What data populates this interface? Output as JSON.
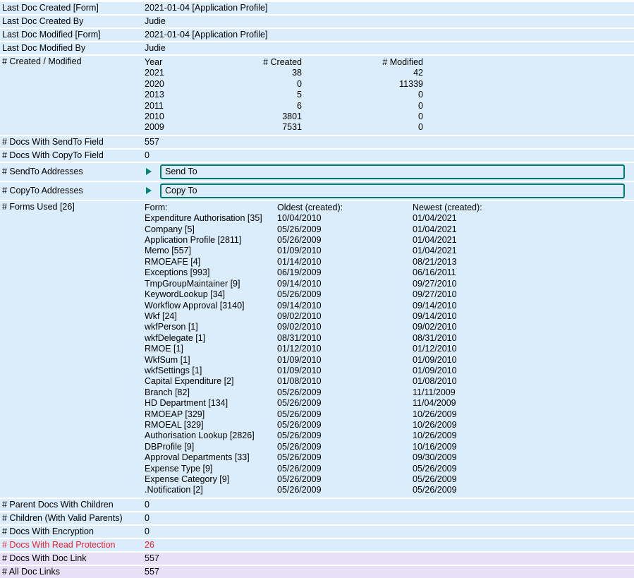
{
  "colors": {
    "row_background": "#dbedfb",
    "alt_row_background": "#e7e0f6",
    "warning_text": "#f11e32",
    "section_border_teal": "#007a70",
    "twistie_arrow_teal": "#00857a",
    "text": "#000000",
    "page_background": "#ffffff"
  },
  "top_rows": [
    {
      "label": "Last Doc Created [Form]",
      "value": "2021-01-04 [Application Profile]"
    },
    {
      "label": "Last Doc Created By",
      "value": "Judie"
    },
    {
      "label": "Last Doc Modified [Form]",
      "value": "2021-01-04 [Application Profile]"
    },
    {
      "label": "Last Doc Modified By",
      "value": "Judie"
    }
  ],
  "created_modified": {
    "label": "# Created / Modified",
    "columns": {
      "year": "Year",
      "created": "# Created",
      "modified": "# Modified"
    },
    "rows": [
      {
        "year": "2021",
        "created": "38",
        "modified": "42"
      },
      {
        "year": "2020",
        "created": "0",
        "modified": "11339"
      },
      {
        "year": "2013",
        "created": "5",
        "modified": "0"
      },
      {
        "year": "2011",
        "created": "6",
        "modified": "0"
      },
      {
        "year": "2010",
        "created": "3801",
        "modified": "0"
      },
      {
        "year": "2009",
        "created": "7531",
        "modified": "0"
      }
    ]
  },
  "sendto_field": {
    "label": "# Docs With SendTo Field",
    "value": "557"
  },
  "copyto_field": {
    "label": "# Docs With CopyTo Field",
    "value": "0"
  },
  "sendto_section": {
    "label": "# SendTo Addresses",
    "field_label": "Send To"
  },
  "copyto_section": {
    "label": "# CopyTo Addresses",
    "field_label": "Copy To"
  },
  "forms_used": {
    "label": "# Forms Used [26]",
    "columns": {
      "form": "Form:",
      "oldest": "Oldest (created):",
      "newest": "Newest (created):"
    },
    "rows": [
      {
        "form": "Expenditure Authorisation [35]",
        "oldest": "10/04/2010",
        "newest": "01/04/2021"
      },
      {
        "form": "Company [5]",
        "oldest": "05/26/2009",
        "newest": "01/04/2021"
      },
      {
        "form": "Application Profile [2811]",
        "oldest": "05/26/2009",
        "newest": "01/04/2021"
      },
      {
        "form": "Memo [557]",
        "oldest": "01/09/2010",
        "newest": "01/04/2021"
      },
      {
        "form": "RMOEAFE [4]",
        "oldest": "01/14/2010",
        "newest": "08/21/2013"
      },
      {
        "form": "Exceptions [993]",
        "oldest": "06/19/2009",
        "newest": "06/16/2011"
      },
      {
        "form": "TmpGroupMaintainer [9]",
        "oldest": "09/14/2010",
        "newest": "09/27/2010"
      },
      {
        "form": "KeywordLookup [34]",
        "oldest": "05/26/2009",
        "newest": "09/27/2010"
      },
      {
        "form": "Workflow Approval [3140]",
        "oldest": "09/14/2010",
        "newest": "09/14/2010"
      },
      {
        "form": "Wkf [24]",
        "oldest": "09/02/2010",
        "newest": "09/14/2010"
      },
      {
        "form": "wkfPerson [1]",
        "oldest": "09/02/2010",
        "newest": "09/02/2010"
      },
      {
        "form": "wkfDelegate [1]",
        "oldest": "08/31/2010",
        "newest": "08/31/2010"
      },
      {
        "form": "RMOE [1]",
        "oldest": "01/12/2010",
        "newest": "01/12/2010"
      },
      {
        "form": "WkfSum [1]",
        "oldest": "01/09/2010",
        "newest": "01/09/2010"
      },
      {
        "form": "wkfSettings [1]",
        "oldest": "01/09/2010",
        "newest": "01/09/2010"
      },
      {
        "form": "Capital Expenditure [2]",
        "oldest": "01/08/2010",
        "newest": "01/08/2010"
      },
      {
        "form": "Branch [82]",
        "oldest": "05/26/2009",
        "newest": "11/11/2009"
      },
      {
        "form": "HD Department [134]",
        "oldest": "05/26/2009",
        "newest": "11/04/2009"
      },
      {
        "form": "RMOEAP [329]",
        "oldest": "05/26/2009",
        "newest": "10/26/2009"
      },
      {
        "form": "RMOEAL [329]",
        "oldest": "05/26/2009",
        "newest": "10/26/2009"
      },
      {
        "form": "Authorisation Lookup [2826]",
        "oldest": "05/26/2009",
        "newest": "10/26/2009"
      },
      {
        "form": "DBProfile [9]",
        "oldest": "05/26/2009",
        "newest": "10/16/2009"
      },
      {
        "form": "Approval Departments [33]",
        "oldest": "05/26/2009",
        "newest": "09/30/2009"
      },
      {
        "form": "Expense Type [9]",
        "oldest": "05/26/2009",
        "newest": "05/26/2009"
      },
      {
        "form": "Expense Category [9]",
        "oldest": "05/26/2009",
        "newest": "05/26/2009"
      },
      {
        "form": ".Notification [2]",
        "oldest": "05/26/2009",
        "newest": "05/26/2009"
      }
    ]
  },
  "bottom_rows": [
    {
      "label": "# Parent Docs With Children",
      "value": "0"
    },
    {
      "label": "# Children (With Valid Parents)",
      "value": "0"
    },
    {
      "label": "# Docs With Encryption",
      "value": "0"
    },
    {
      "label": "# Docs With Read Protection",
      "value": "26"
    },
    {
      "label": "# Docs With Doc Link",
      "value": "557"
    },
    {
      "label": "# All Doc Links",
      "value": "557"
    }
  ]
}
